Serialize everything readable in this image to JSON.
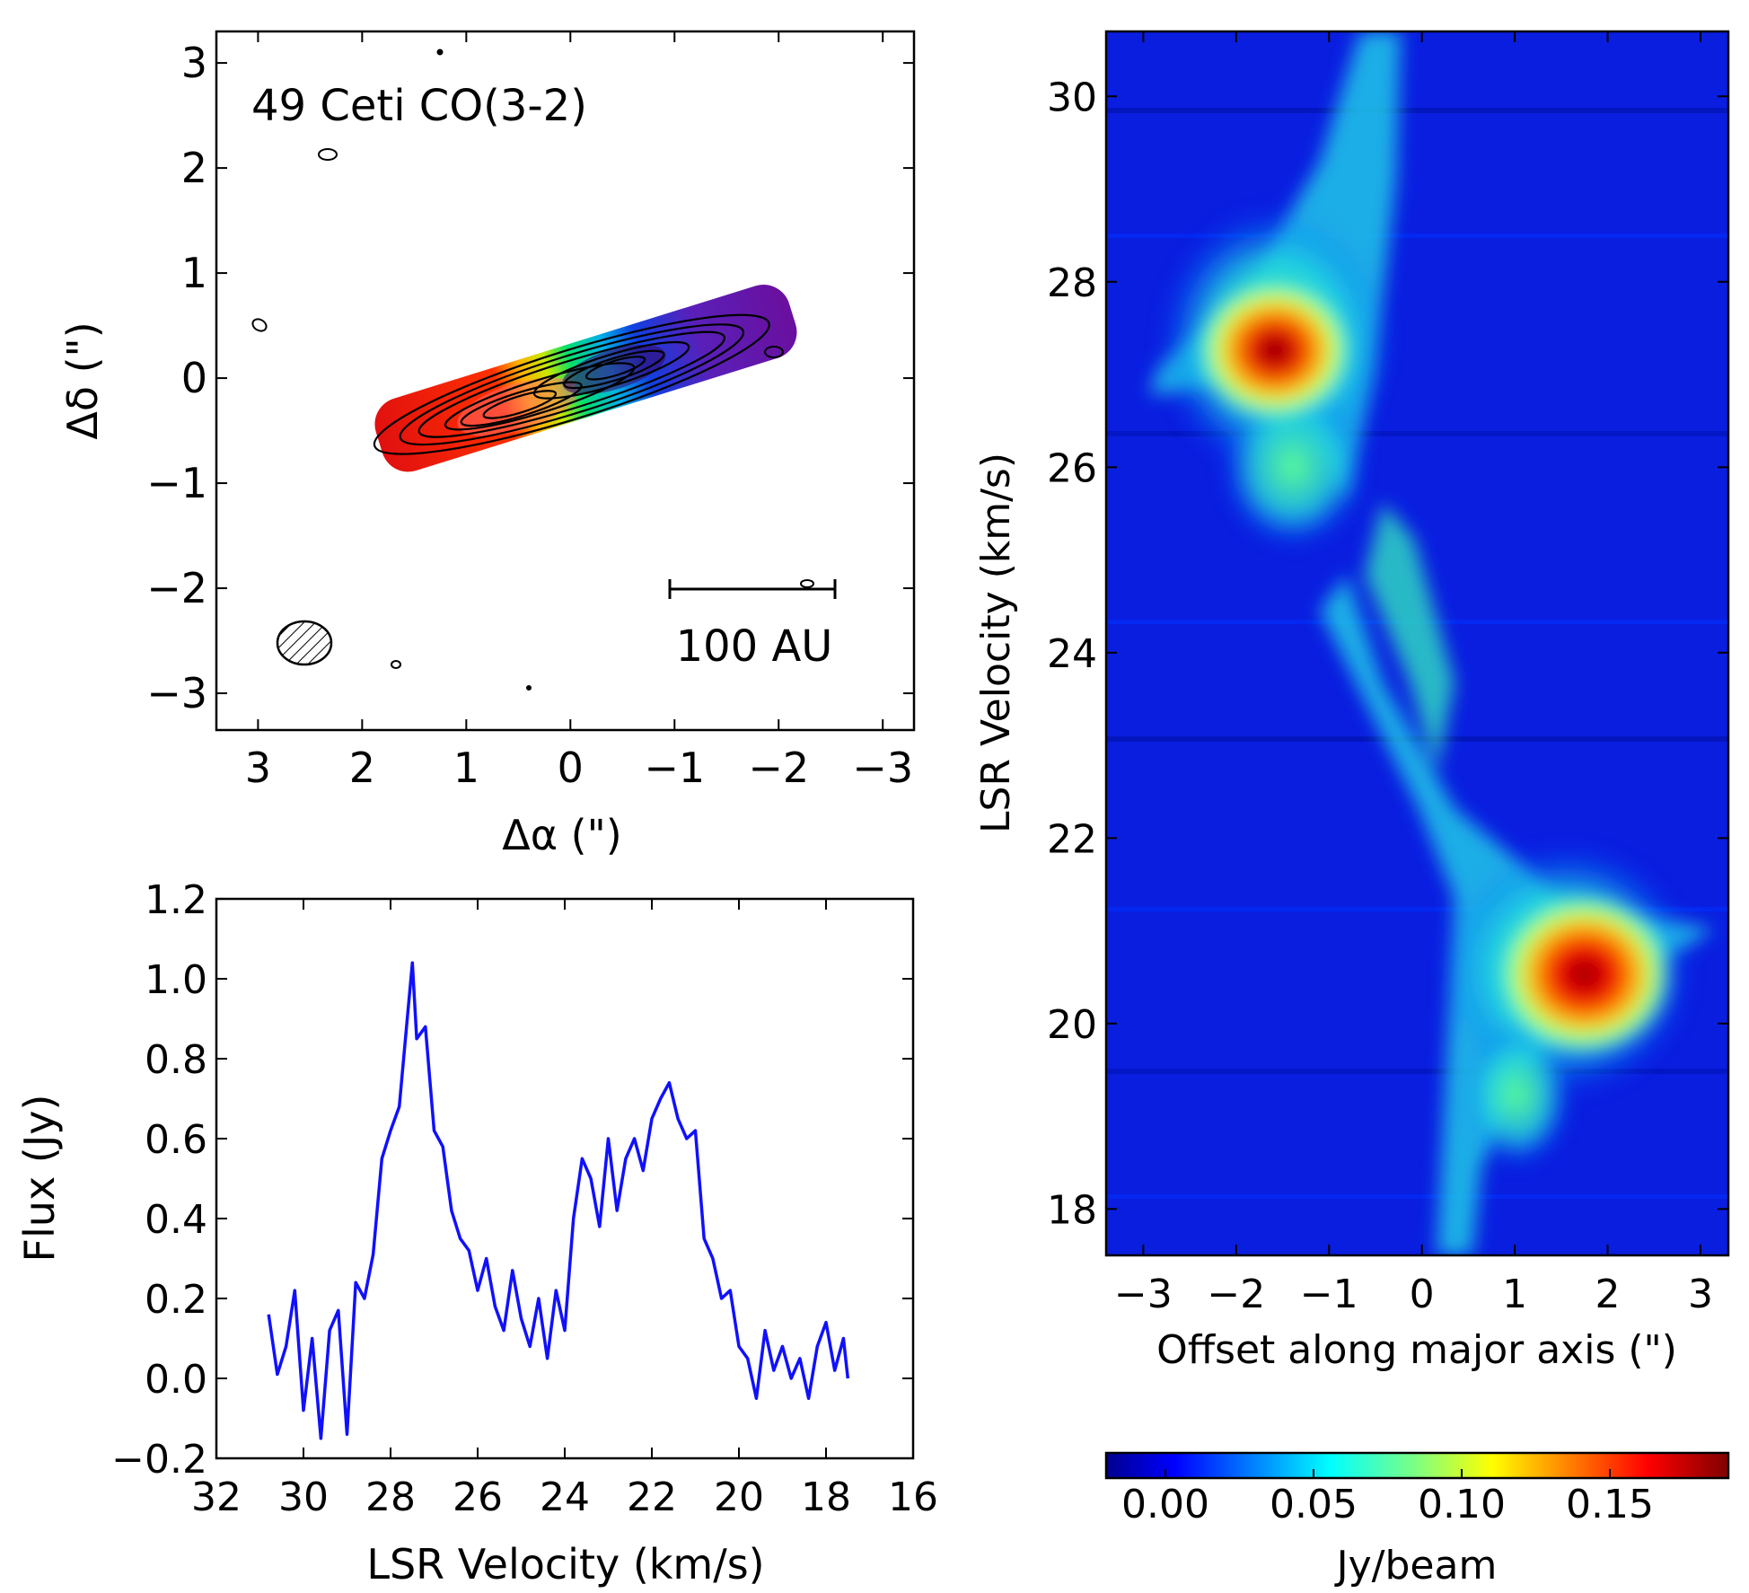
{
  "colors": {
    "line_blue": "#1010ff",
    "background": "#ffffff",
    "axis": "#000000",
    "colormap": "jet"
  },
  "chart_data": [
    {
      "panel": "moment-map",
      "type": "heatmap",
      "title": "49 Ceti CO(3-2)",
      "xlabel": "Δα (\")",
      "ylabel": "Δδ (\")",
      "xlim": [
        3.4,
        -3.3
      ],
      "ylim": [
        -3.35,
        3.3
      ],
      "xticks": [
        3,
        2,
        1,
        0,
        -1,
        -2,
        -3
      ],
      "yticks": [
        3,
        2,
        1,
        0,
        -1,
        -2,
        -3
      ],
      "scale_bar_label": "100 AU",
      "scale_bar_length_arcsec": 1.6,
      "beam": {
        "x": 2.5,
        "y": -2.5,
        "major": 0.5,
        "minor": 0.4
      },
      "disk": {
        "center": [
          0.3,
          -0.1
        ],
        "pa_deg": 73,
        "major_extent": [
          -1.9,
          2.1
        ]
      },
      "peaks": [
        {
          "x": 0.6,
          "y": -0.15,
          "color": "red"
        },
        {
          "x": -0.4,
          "y": 0.15,
          "color": "purple"
        }
      ]
    },
    {
      "panel": "spectrum",
      "type": "line",
      "xlabel": "LSR Velocity (km/s)",
      "ylabel": "Flux (Jy)",
      "xlim": [
        32,
        16
      ],
      "ylim": [
        -0.2,
        1.2
      ],
      "xticks": [
        32,
        30,
        28,
        26,
        24,
        22,
        20,
        18,
        16
      ],
      "yticks": [
        -0.2,
        0.0,
        0.2,
        0.4,
        0.6,
        0.8,
        1.0,
        1.2
      ],
      "series": [
        {
          "x": [
            30.8,
            30.6,
            30.4,
            30.2,
            30.0,
            29.8,
            29.6,
            29.4,
            29.2,
            29.0,
            28.8,
            28.6,
            28.4,
            28.2,
            28.0,
            27.8,
            27.6,
            27.5,
            27.4,
            27.2,
            27.0,
            26.8,
            26.6,
            26.4,
            26.2,
            26.0,
            25.8,
            25.6,
            25.4,
            25.2,
            25.0,
            24.8,
            24.6,
            24.4,
            24.2,
            24.0,
            23.8,
            23.6,
            23.4,
            23.2,
            23.0,
            22.8,
            22.6,
            22.4,
            22.2,
            22.0,
            21.8,
            21.6,
            21.4,
            21.2,
            21.0,
            20.8,
            20.6,
            20.4,
            20.2,
            20.0,
            19.8,
            19.6,
            19.4,
            19.2,
            19.0,
            18.8,
            18.6,
            18.4,
            18.2,
            18.0,
            17.8,
            17.6,
            17.5
          ],
          "values": [
            0.16,
            0.01,
            0.08,
            0.22,
            -0.08,
            0.1,
            -0.15,
            0.12,
            0.17,
            -0.14,
            0.24,
            0.2,
            0.31,
            0.55,
            0.62,
            0.68,
            0.92,
            1.04,
            0.85,
            0.88,
            0.62,
            0.58,
            0.42,
            0.35,
            0.32,
            0.22,
            0.3,
            0.18,
            0.12,
            0.27,
            0.15,
            0.08,
            0.2,
            0.05,
            0.22,
            0.12,
            0.4,
            0.55,
            0.5,
            0.38,
            0.6,
            0.42,
            0.55,
            0.6,
            0.52,
            0.65,
            0.7,
            0.74,
            0.65,
            0.6,
            0.62,
            0.35,
            0.3,
            0.2,
            0.22,
            0.08,
            0.05,
            -0.05,
            0.12,
            0.02,
            0.08,
            0.0,
            0.05,
            -0.05,
            0.08,
            0.14,
            0.02,
            0.1,
            0.0
          ]
        }
      ]
    },
    {
      "panel": "pv-diagram",
      "type": "heatmap",
      "xlabel": "Offset along major axis (\")",
      "ylabel": "LSR Velocity (km/s)",
      "xlim": [
        -3.4,
        3.3
      ],
      "ylim": [
        17.5,
        30.7
      ],
      "xticks": [
        -3,
        -2,
        -1,
        0,
        1,
        2,
        3
      ],
      "yticks": [
        18,
        20,
        22,
        24,
        26,
        28,
        30
      ],
      "peaks": [
        {
          "offset": -1.5,
          "velocity": 27.5,
          "flux": 0.19
        },
        {
          "offset": 1.8,
          "velocity": 20.5,
          "flux": 0.17
        }
      ],
      "colorbar": {
        "label": "Jy/beam",
        "range": [
          -0.02,
          0.19
        ],
        "ticks": [
          0.0,
          0.05,
          0.1,
          0.15
        ],
        "tick_labels": [
          "0.00",
          "0.05",
          "0.10",
          "0.15"
        ]
      }
    }
  ]
}
